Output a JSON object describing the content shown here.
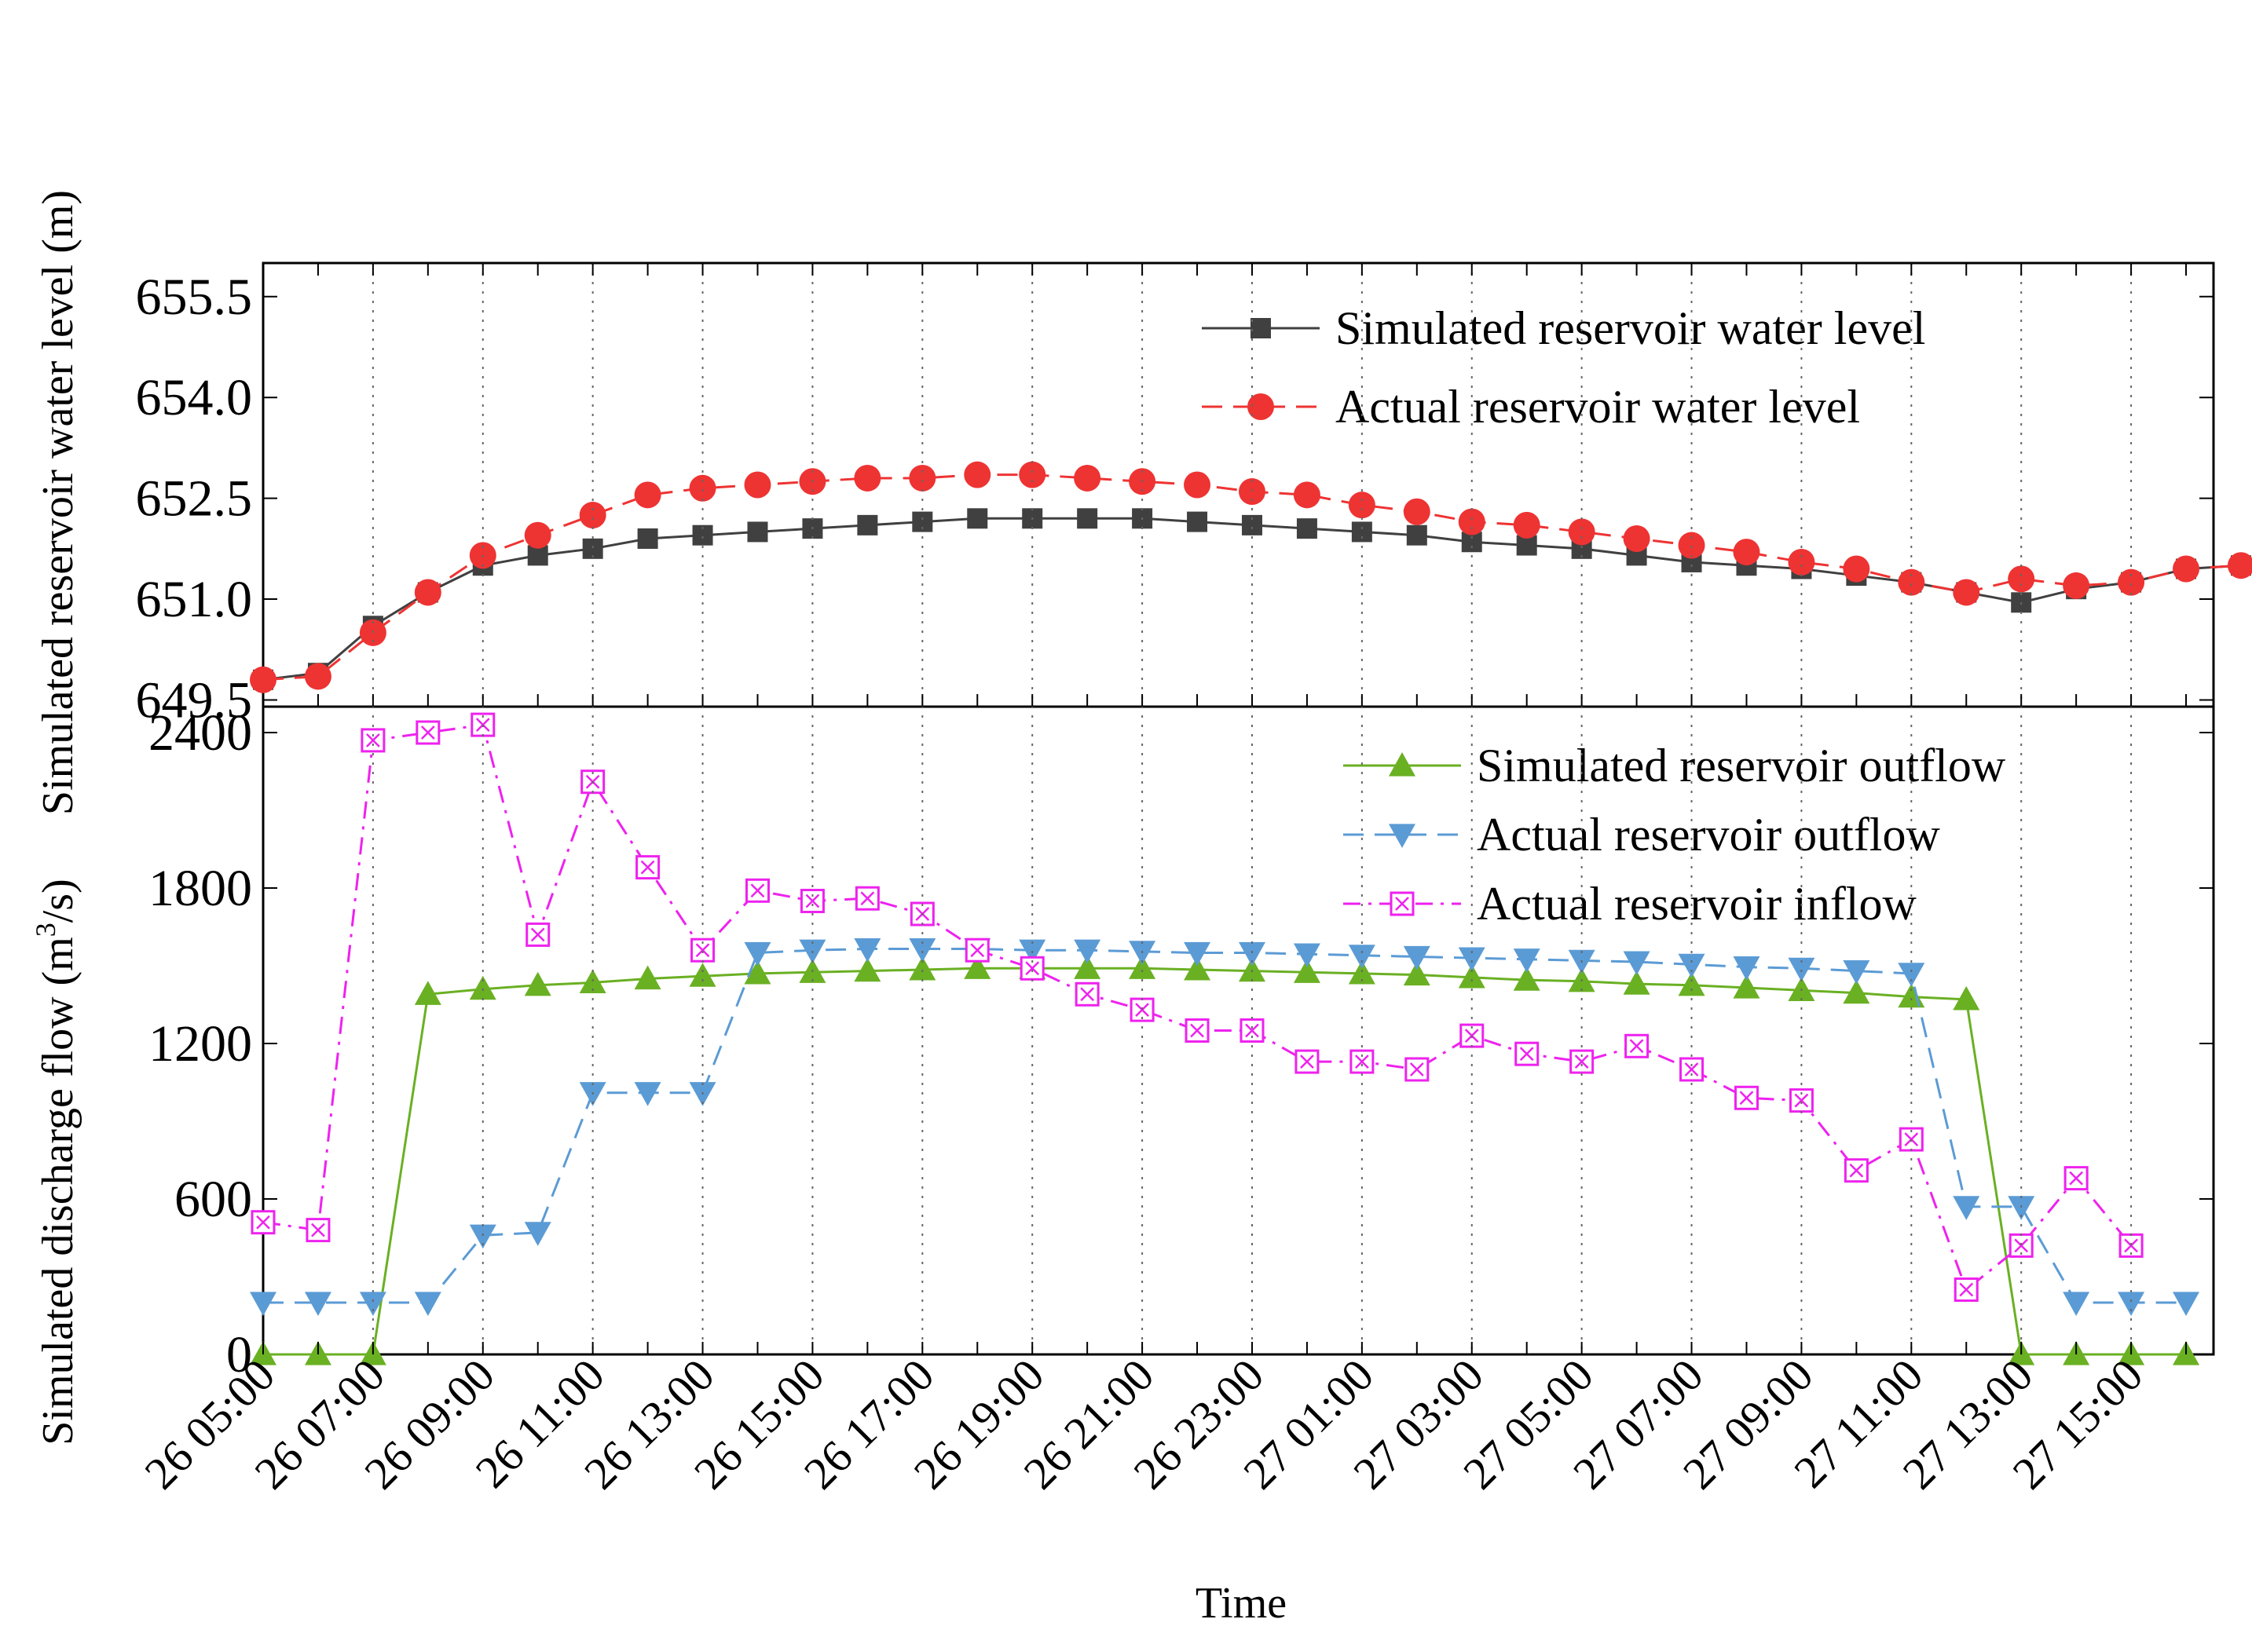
{
  "chart_data": [
    {
      "type": "line",
      "panel": "top",
      "ylabel": "Simulated reservoir water level (m)",
      "ylim": [
        649.4,
        656.0
      ],
      "yticks": [
        649.5,
        651.0,
        652.5,
        654.0,
        655.5
      ],
      "ytick_labels": [
        "649.5",
        "651.0",
        "652.5",
        "654.0",
        "655.5"
      ],
      "series": [
        {
          "name": "Simulated reservoir water level",
          "color": "#404040",
          "marker": "square",
          "linestyle": "solid",
          "values": [
            649.8,
            649.9,
            650.6,
            651.1,
            651.5,
            651.65,
            651.75,
            651.9,
            651.95,
            652.0,
            652.05,
            652.1,
            652.15,
            652.2,
            652.2,
            652.2,
            652.2,
            652.15,
            652.1,
            652.05,
            652.0,
            651.95,
            651.85,
            651.8,
            651.75,
            651.65,
            651.55,
            651.5,
            651.45,
            651.35,
            651.25,
            651.1,
            650.95,
            651.15,
            651.25,
            651.45,
            651.5
          ]
        },
        {
          "name": "Actual reservoir water level",
          "color": "#ee3333",
          "marker": "circle",
          "linestyle": "dashed",
          "values": [
            649.8,
            649.85,
            650.5,
            651.1,
            651.65,
            651.95,
            652.25,
            652.55,
            652.65,
            652.7,
            652.75,
            652.8,
            652.8,
            652.85,
            652.85,
            652.8,
            652.75,
            652.7,
            652.6,
            652.55,
            652.4,
            652.3,
            652.15,
            652.1,
            652.0,
            651.9,
            651.8,
            651.7,
            651.55,
            651.45,
            651.25,
            651.1,
            651.3,
            651.2,
            651.25,
            651.45,
            651.5
          ]
        }
      ]
    },
    {
      "type": "line",
      "panel": "bottom",
      "ylabel_prefix": "Simulated discharge flow (m",
      "ylabel_sup": "3",
      "ylabel_suffix": "/s)",
      "xlabel": "Time",
      "ylim": [
        0,
        2500
      ],
      "yticks": [
        0,
        600,
        1200,
        1800,
        2400
      ],
      "ytick_labels": [
        "0",
        "600",
        "1200",
        "1800",
        "2400"
      ],
      "x_labels": [
        "26 05:00",
        "26 07:00",
        "26 09:00",
        "26 11:00",
        "26 13:00",
        "26 15:00",
        "26 17:00",
        "26 19:00",
        "26 21:00",
        "26 23:00",
        "27 01:00",
        "27 03:00",
        "27 05:00",
        "27 07:00",
        "27 09:00",
        "27 11:00",
        "27 13:00",
        "27 15:00"
      ],
      "series": [
        {
          "name": "Simulated reservoir outflow",
          "color": "#6ab023",
          "marker": "triangle-up",
          "linestyle": "solid",
          "values": [
            0,
            0,
            0,
            1390,
            1410,
            1425,
            1435,
            1450,
            1460,
            1470,
            1475,
            1480,
            1485,
            1490,
            1490,
            1490,
            1490,
            1485,
            1480,
            1475,
            1470,
            1465,
            1455,
            1445,
            1440,
            1430,
            1425,
            1415,
            1405,
            1395,
            1380,
            1370,
            0,
            0,
            0,
            0
          ]
        },
        {
          "name": "Actual reservoir outflow",
          "color": "#5b9bd5",
          "marker": "triangle-down",
          "linestyle": "dashed",
          "values": [
            200,
            200,
            200,
            200,
            460,
            470,
            1010,
            1010,
            1010,
            1550,
            1560,
            1565,
            1565,
            1565,
            1560,
            1560,
            1555,
            1550,
            1550,
            1545,
            1540,
            1535,
            1530,
            1525,
            1520,
            1515,
            1505,
            1495,
            1490,
            1480,
            1470,
            570,
            570,
            200,
            200,
            200
          ]
        },
        {
          "name": "Actual reservoir inflow",
          "color": "#ee22ee",
          "marker": "boxed-x",
          "linestyle": "dashdot",
          "values": [
            510,
            480,
            2370,
            2400,
            2430,
            1620,
            2210,
            1880,
            1560,
            1790,
            1750,
            1760,
            1700,
            1560,
            1490,
            1390,
            1330,
            1250,
            1250,
            1130,
            1130,
            1100,
            1230,
            1160,
            1130,
            1190,
            1100,
            990,
            980,
            710,
            830,
            250,
            420,
            680,
            420
          ]
        }
      ]
    }
  ]
}
